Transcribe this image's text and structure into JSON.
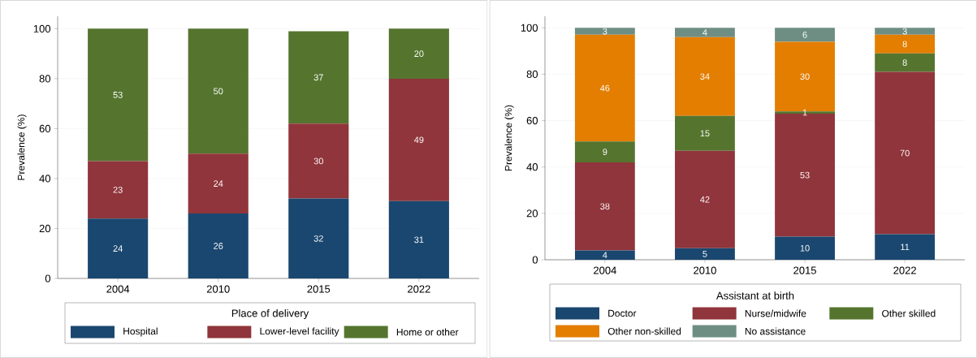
{
  "chart_data": [
    {
      "type": "bar",
      "stacked": true,
      "ylabel": "Prevalence (%)",
      "legend_title": "Place of delivery",
      "categories": [
        "2004",
        "2010",
        "2015",
        "2022"
      ],
      "ylim": [
        0,
        105
      ],
      "yticks": [
        0,
        20,
        40,
        60,
        80,
        100
      ],
      "grid": "y",
      "legend": "bottom",
      "data_labels": true,
      "series": [
        {
          "name": "Hospital",
          "color": "#1a476f",
          "values": [
            24,
            26,
            32,
            31
          ]
        },
        {
          "name": "Lower-level facility",
          "color": "#90353b",
          "values": [
            23,
            24,
            30,
            49
          ]
        },
        {
          "name": "Home or other",
          "color": "#55752f",
          "values": [
            53,
            50,
            37,
            20
          ]
        }
      ]
    },
    {
      "type": "bar",
      "stacked": true,
      "ylabel": "Prevalence (%)",
      "legend_title": "Assistant at birth",
      "categories": [
        "2004",
        "2010",
        "2015",
        "2022"
      ],
      "ylim": [
        0,
        105
      ],
      "yticks": [
        0,
        20,
        40,
        60,
        80,
        100
      ],
      "grid": "y",
      "legend": "bottom",
      "data_labels": true,
      "series": [
        {
          "name": "Doctor",
          "color": "#1a476f",
          "values": [
            4,
            5,
            10,
            11
          ]
        },
        {
          "name": "Nurse/midwife",
          "color": "#90353b",
          "values": [
            38,
            42,
            53,
            70
          ]
        },
        {
          "name": "Other skilled",
          "color": "#55752f",
          "values": [
            9,
            15,
            1,
            8
          ]
        },
        {
          "name": "Other non-skilled",
          "color": "#e37e00",
          "values": [
            46,
            34,
            30,
            8
          ]
        },
        {
          "name": "No assistance",
          "color": "#6e8e84",
          "values": [
            3,
            4,
            6,
            3
          ]
        }
      ]
    }
  ]
}
